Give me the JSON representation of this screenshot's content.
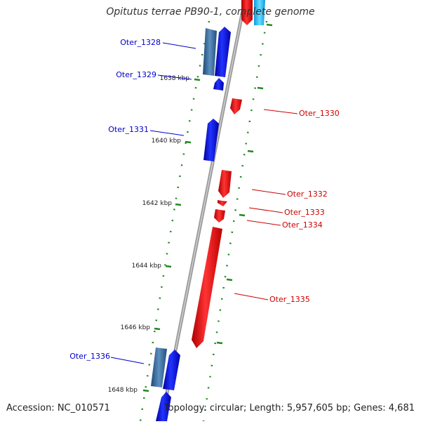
{
  "title": "Opitutus terrae PB90-1, complete genome",
  "footer": {
    "accession": "Accession: NC_010571",
    "summary": "Topology: circular; Length: 5,957,605 bp; Genes: 4,681"
  },
  "colors": {
    "forward_gene": "#0000ee",
    "forward_gene_dark": "#336699",
    "forward_label": "#0000cc",
    "reverse_gene": "#ee0000",
    "reverse_label": "#cc0000",
    "tick": "#228822",
    "backbone": "#888888",
    "cyan_gene": "#33ccff"
  },
  "scale": {
    "ticks": [
      "1638 kbp",
      "1640 kbp",
      "1642 kbp",
      "1644 kbp",
      "1646 kbp",
      "1648 kbp"
    ]
  },
  "genes_forward": [
    {
      "label": "Oter_1328"
    },
    {
      "label": "Oter_1329"
    },
    {
      "label": "Oter_1331"
    },
    {
      "label": "Oter_1336"
    }
  ],
  "genes_reverse": [
    {
      "label": "Oter_1330"
    },
    {
      "label": "Oter_1332"
    },
    {
      "label": "Oter_1333"
    },
    {
      "label": "Oter_1334"
    },
    {
      "label": "Oter_1335"
    }
  ]
}
